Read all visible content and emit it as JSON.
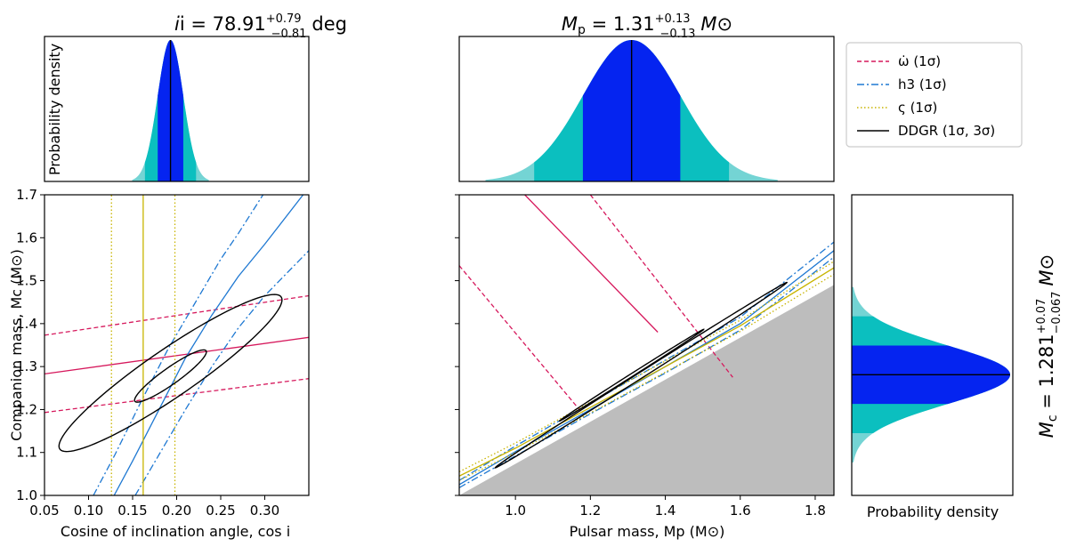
{
  "chart_data": [
    {
      "type": "distribution",
      "panel": "top-left",
      "title_main": "i = 78.91",
      "title_sup": "+0.79",
      "title_sub": "−0.81",
      "title_unit": "deg",
      "ylabel": "Probability density",
      "param": "cos i",
      "median": 0.193,
      "sigma": 0.0145,
      "xlim": [
        0.05,
        0.35
      ]
    },
    {
      "type": "distribution",
      "panel": "top-middle",
      "title_main": "M",
      "title_msub": "p",
      "title_eq": " = 1.31",
      "title_sup": "+0.13",
      "title_sub": "−0.13",
      "title_unit": "M⊙",
      "param": "Mp",
      "median": 1.31,
      "sigma": 0.13,
      "xlim": [
        0.85,
        1.85
      ]
    },
    {
      "type": "line",
      "panel": "bottom-left",
      "xlabel": "Cosine of inclination angle, cos i",
      "ylabel": "Companion mass, Mc (M⊙)",
      "xlim": [
        0.05,
        0.35
      ],
      "ylim": [
        1.0,
        1.7
      ],
      "xticks": [
        "0.05",
        "0.10",
        "0.15",
        "0.20",
        "0.25",
        "0.30"
      ],
      "yticks": [
        "1.0",
        "1.1",
        "1.2",
        "1.3",
        "1.4",
        "1.5",
        "1.6",
        "1.7"
      ],
      "series": [
        {
          "name": "omdot_central",
          "x": [
            0.05,
            0.35
          ],
          "y": [
            1.283,
            1.368
          ]
        },
        {
          "name": "omdot_lower",
          "x": [
            0.05,
            0.35
          ],
          "y": [
            1.193,
            1.272
          ]
        },
        {
          "name": "omdot_upper",
          "x": [
            0.05,
            0.35
          ],
          "y": [
            1.373,
            1.465
          ]
        },
        {
          "name": "h3_central",
          "x": [
            0.129,
            0.15,
            0.18,
            0.21,
            0.24,
            0.27,
            0.3,
            0.3435
          ],
          "y": [
            1.0,
            1.08,
            1.2,
            1.32,
            1.42,
            1.51,
            1.585,
            1.7
          ]
        },
        {
          "name": "h3_left",
          "x": [
            0.1055,
            0.13,
            0.16,
            0.19,
            0.22,
            0.25,
            0.27,
            0.298
          ],
          "y": [
            1.0,
            1.095,
            1.22,
            1.34,
            1.445,
            1.55,
            1.61,
            1.7
          ]
        },
        {
          "name": "h3_right",
          "x": [
            0.153,
            0.18,
            0.21,
            0.24,
            0.27,
            0.3,
            0.35
          ],
          "y": [
            1.0,
            1.095,
            1.2,
            1.3,
            1.39,
            1.465,
            1.57
          ]
        },
        {
          "name": "varsigma_central",
          "x": [
            0.162,
            0.162
          ],
          "y": [
            1.0,
            1.7
          ]
        },
        {
          "name": "varsigma_lower",
          "x": [
            0.126,
            0.126
          ],
          "y": [
            1.0,
            1.7
          ]
        },
        {
          "name": "varsigma_upper",
          "x": [
            0.198,
            0.198
          ],
          "y": [
            1.0,
            1.7
          ]
        }
      ],
      "contours": [
        {
          "name": "ddgr_1sigma",
          "cx": 0.193,
          "cy": 1.278,
          "a": 0.072,
          "b": 0.0132,
          "angle_deg": 57
        },
        {
          "name": "ddgr_3sigma",
          "cx": 0.193,
          "cy": 1.285,
          "a": 0.219,
          "b": 0.0385,
          "angle_deg": 56
        }
      ]
    },
    {
      "type": "line",
      "panel": "bottom-middle",
      "xlabel": "Pulsar mass, Mp (M⊙)",
      "xlim": [
        0.85,
        1.85
      ],
      "ylim": [
        1.0,
        1.7
      ],
      "xticks": [
        "1.0",
        "1.2",
        "1.4",
        "1.6",
        "1.8"
      ],
      "excluded_region": {
        "x": [
          0.85,
          1.85
        ],
        "y": [
          1.0,
          1.49
        ]
      },
      "series": [
        {
          "name": "omdot_central",
          "x": [
            1.025,
            1.38
          ],
          "y": [
            1.7,
            1.38
          ]
        },
        {
          "name": "omdot_lower",
          "x": [
            0.85,
            1.18
          ],
          "y": [
            1.535,
            1.19
          ]
        },
        {
          "name": "omdot_upper",
          "x": [
            1.2,
            1.58
          ],
          "y": [
            1.7,
            1.275
          ]
        },
        {
          "name": "h3_central",
          "x": [
            0.85,
            1.0,
            1.2,
            1.4,
            1.6,
            1.85
          ],
          "y": [
            1.025,
            1.102,
            1.2,
            1.3,
            1.4,
            1.57
          ]
        },
        {
          "name": "h3_left",
          "x": [
            0.85,
            1.0,
            1.2,
            1.4,
            1.6,
            1.85
          ],
          "y": [
            1.035,
            1.115,
            1.215,
            1.315,
            1.415,
            1.59
          ]
        },
        {
          "name": "h3_right",
          "x": [
            0.85,
            1.0,
            1.2,
            1.4,
            1.6,
            1.85
          ],
          "y": [
            1.018,
            1.092,
            1.19,
            1.285,
            1.385,
            1.555
          ]
        },
        {
          "name": "varsigma_central",
          "x": [
            0.85,
            1.0,
            1.2,
            1.4,
            1.6,
            1.85
          ],
          "y": [
            1.045,
            1.11,
            1.205,
            1.3,
            1.395,
            1.53
          ]
        },
        {
          "name": "varsigma_lower",
          "x": [
            0.85,
            1.0,
            1.2,
            1.4,
            1.6,
            1.85
          ],
          "y": [
            1.055,
            1.122,
            1.217,
            1.313,
            1.408,
            1.545
          ]
        },
        {
          "name": "varsigma_upper",
          "x": [
            0.85,
            1.0,
            1.2,
            1.4,
            1.6,
            1.85
          ],
          "y": [
            1.035,
            1.1,
            1.192,
            1.287,
            1.382,
            1.515
          ]
        }
      ],
      "contours": [
        {
          "name": "ddgr_1sigma",
          "cx": 1.31,
          "cy": 1.28,
          "a": 0.22,
          "b": 0.0035,
          "angle_deg": 29
        },
        {
          "name": "ddgr_3sigma",
          "cx": 1.335,
          "cy": 1.28,
          "a": 0.445,
          "b": 0.007,
          "angle_deg": 29
        }
      ]
    },
    {
      "type": "distribution",
      "panel": "right",
      "orientation": "horizontal",
      "xlabel": "Probability density",
      "title_main": "M",
      "title_msub": "c",
      "title_eq": " = 1.281",
      "title_sup": "+0.07",
      "title_sub": "−0.067",
      "title_unit": "M⊙",
      "param": "Mc",
      "median": 1.281,
      "sigma": 0.068,
      "ylim": [
        1.0,
        1.7
      ]
    }
  ],
  "legend": {
    "placement": "top-right",
    "entries": [
      {
        "label": "ω̇ (1σ)",
        "style": "dashed",
        "color": "#d6185c"
      },
      {
        "label": "h3 (1σ)",
        "style": "dashdot",
        "color": "#1e78d2"
      },
      {
        "label": "ς (1σ)",
        "style": "dotted",
        "color": "#c8b400"
      },
      {
        "label": "DDGR (1σ, 3σ)",
        "style": "solid",
        "color": "#000000"
      }
    ]
  },
  "colors": {
    "omdot": "#d6185c",
    "h3": "#1e78d2",
    "varsigma": "#c8b400",
    "ddgr": "#000000",
    "sigma1_fill": "#0524f0",
    "sigma2_fill": "#0bbfbf",
    "sigma3_fill": "#74d4d4",
    "excluded": "#bdbdbd"
  }
}
